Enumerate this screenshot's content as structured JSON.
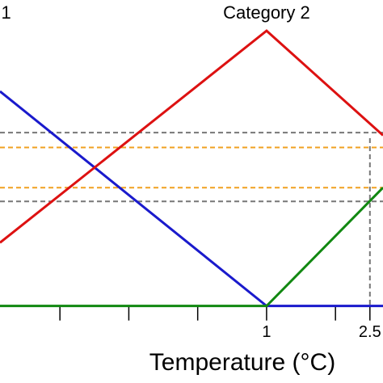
{
  "chart_data": {
    "type": "line",
    "xlabel": "Temperature (°C)",
    "xlim": [
      -2.87,
      2.69
    ],
    "ylim": [
      -0.28,
      1.112
    ],
    "xticks": [
      1,
      2.5
    ],
    "xminor_ticks": [
      -2,
      -1,
      0,
      2
    ],
    "labels": [
      {
        "text": "1",
        "x": -2.78
      },
      {
        "text": "Category 2",
        "x": 1
      }
    ],
    "series": [
      {
        "color": "#1a1acc",
        "x": [
          -2.87,
          1,
          2.69
        ],
        "values": [
          0.78,
          0,
          0
        ]
      },
      {
        "color": "#dd1111",
        "x": [
          -2.87,
          1,
          2.69
        ],
        "values": [
          0.23,
          1,
          0.62
        ]
      },
      {
        "color": "#118811",
        "x": [
          -2.87,
          1,
          2.69
        ],
        "values": [
          0,
          0,
          0.43
        ]
      }
    ],
    "hlines": [
      {
        "y": 0.63,
        "color": "#777777"
      },
      {
        "y": 0.38,
        "color": "#777777"
      },
      {
        "y": 0.576,
        "color": "#f0a020"
      },
      {
        "y": 0.43,
        "color": "#f0a020"
      }
    ],
    "vlines": [
      {
        "x": 2.5,
        "ymax": 0.61,
        "color": "#777777"
      }
    ]
  }
}
